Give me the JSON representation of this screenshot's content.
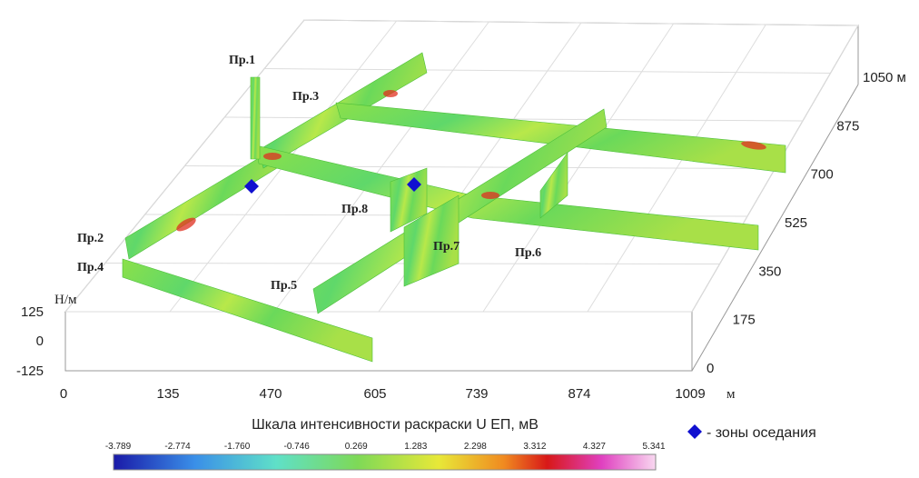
{
  "profiles": [
    "Пр.1",
    "Пр.2",
    "Пр.3",
    "Пр.4",
    "Пр.5",
    "Пр.6",
    "Пр.7",
    "Пр.8"
  ],
  "x_axis": {
    "ticks": [
      "0",
      "135",
      "470",
      "605",
      "739",
      "874",
      "1009"
    ],
    "unit": "м"
  },
  "y_axis": {
    "ticks": [
      "0",
      "175",
      "350",
      "525",
      "700",
      "875",
      "1050 м"
    ]
  },
  "h_axis": {
    "label": "Н/м",
    "ticks": [
      "125",
      "0",
      "-125"
    ]
  },
  "colorbar": {
    "title": "Шкала интенсивности раскраски U ЕП, мВ",
    "ticks": [
      "-3.789",
      "-2.774",
      "-1.760",
      "-0.746",
      "0.269",
      "1.283",
      "2.298",
      "3.312",
      "4.327",
      "5.341"
    ]
  },
  "legend": {
    "label": "- зоны оседания"
  }
}
